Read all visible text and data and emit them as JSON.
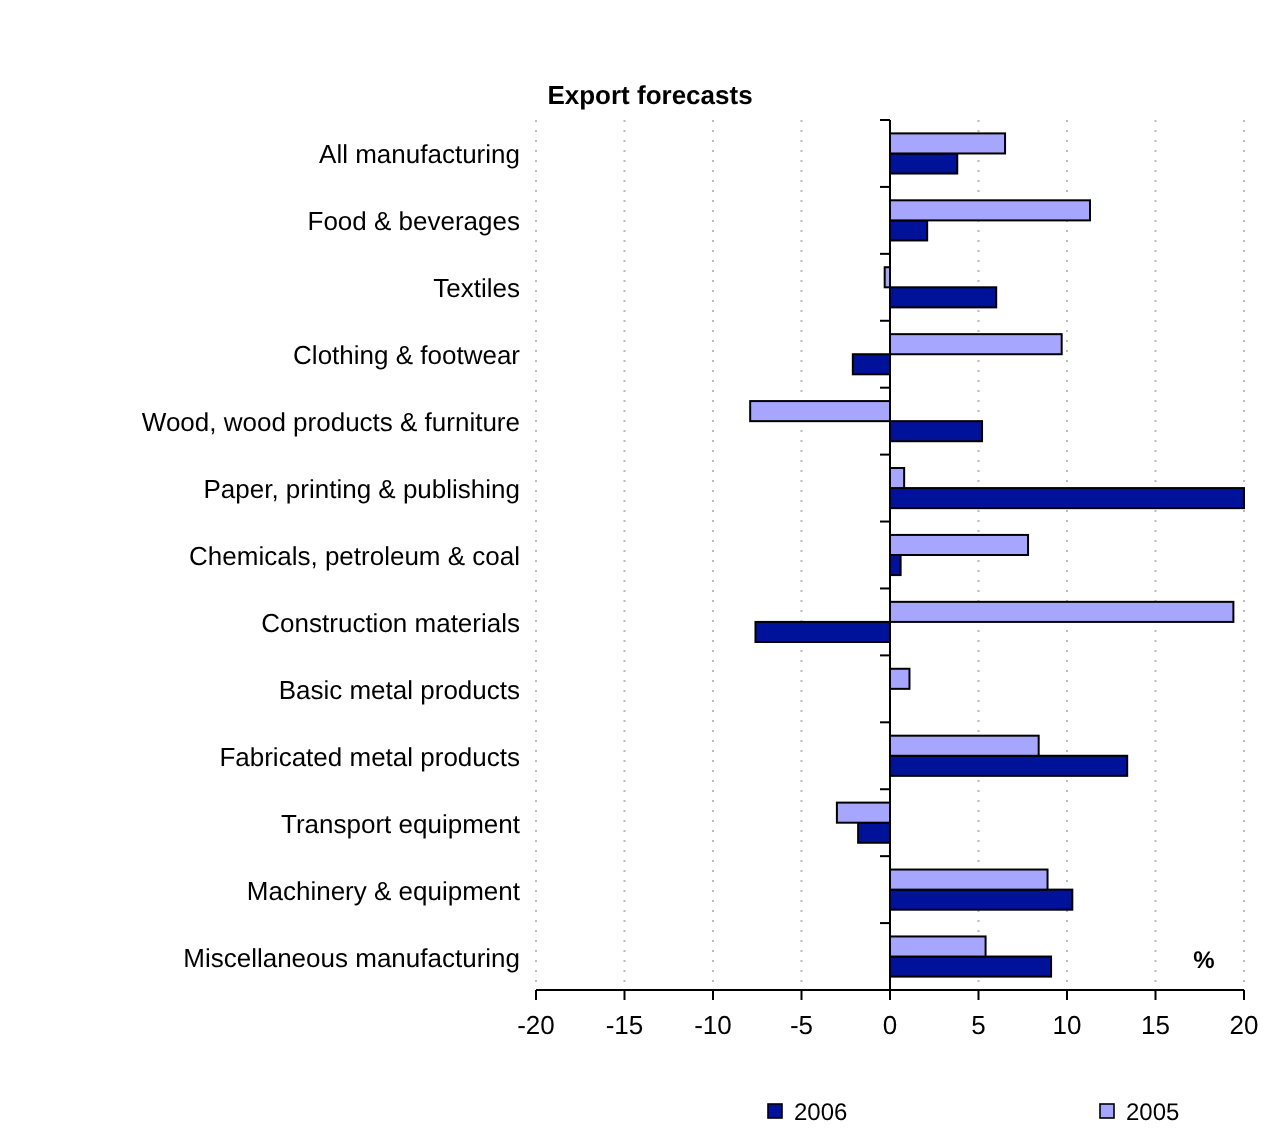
{
  "chart_data": {
    "type": "bar",
    "orientation": "horizontal",
    "title": "Export forecasts",
    "categories": [
      "All manufacturing",
      "Food & beverages",
      "Textiles",
      "Clothing & footwear",
      "Wood, wood products & furniture",
      "Paper, printing & publishing",
      "Chemicals, petroleum & coal",
      "Construction materials",
      "Basic metal products",
      "Fabricated metal products",
      "Transport equipment",
      "Machinery & equipment",
      "Miscellaneous manufacturing"
    ],
    "series": [
      {
        "name": "2006",
        "color": "#00129a",
        "values": [
          3.8,
          2.1,
          6.0,
          -2.1,
          5.2,
          20,
          0.6,
          -7.6,
          0,
          13.4,
          -1.8,
          10.3,
          9.1
        ]
      },
      {
        "name": "2005",
        "color": "#a6a6ff",
        "values": [
          6.5,
          11.3,
          -0.3,
          9.7,
          -7.9,
          0.8,
          7.8,
          19.4,
          1.1,
          8.4,
          -3.0,
          8.9,
          5.4
        ]
      }
    ],
    "xlim": [
      -20,
      20
    ],
    "xticks": [
      -20,
      -15,
      -10,
      -5,
      0,
      5,
      10,
      15,
      20
    ],
    "grid": "x",
    "legend": "bottom",
    "annotations": [
      "%"
    ]
  }
}
